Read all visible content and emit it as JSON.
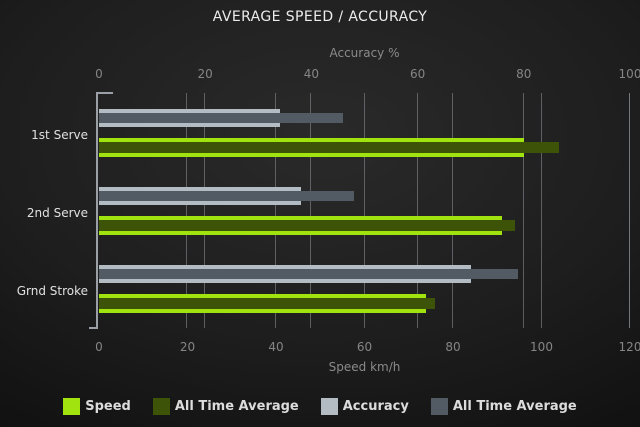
{
  "title": "AVERAGE SPEED / ACCURACY",
  "chart_data": {
    "type": "bar",
    "orientation": "horizontal",
    "grid": true,
    "legend_position": "bottom",
    "categories": [
      "1st Serve",
      "2nd Serve",
      "Grnd Stroke"
    ],
    "axes": {
      "top": {
        "label": "Accuracy %",
        "min": 0,
        "max": 100,
        "ticks": [
          0,
          20,
          40,
          60,
          80,
          100
        ]
      },
      "bottom": {
        "label": "Speed km/h",
        "min": 0,
        "max": 120,
        "ticks": [
          0,
          20,
          40,
          60,
          80,
          100,
          120
        ]
      }
    },
    "series": [
      {
        "name": "Speed",
        "axis": "bottom",
        "color": "#a0e30f",
        "values": [
          96,
          91,
          74
        ]
      },
      {
        "name": "All Time Average",
        "axis": "bottom",
        "color": "#3d5408",
        "values": [
          104,
          94,
          76
        ]
      },
      {
        "name": "Accuracy",
        "axis": "top",
        "color": "#b3bcc2",
        "values": [
          34,
          38,
          70
        ]
      },
      {
        "name": "All Time Average",
        "axis": "top",
        "color": "#525a63",
        "values": [
          46,
          48,
          79
        ]
      }
    ]
  },
  "colors": {
    "background": "#1e1e1e",
    "gridline": "#81878c",
    "axis_line": "#9aa0a5",
    "title_text": "#ececec",
    "axis_text": "#8a8a8a",
    "legend_text": "#dcdcdc"
  }
}
